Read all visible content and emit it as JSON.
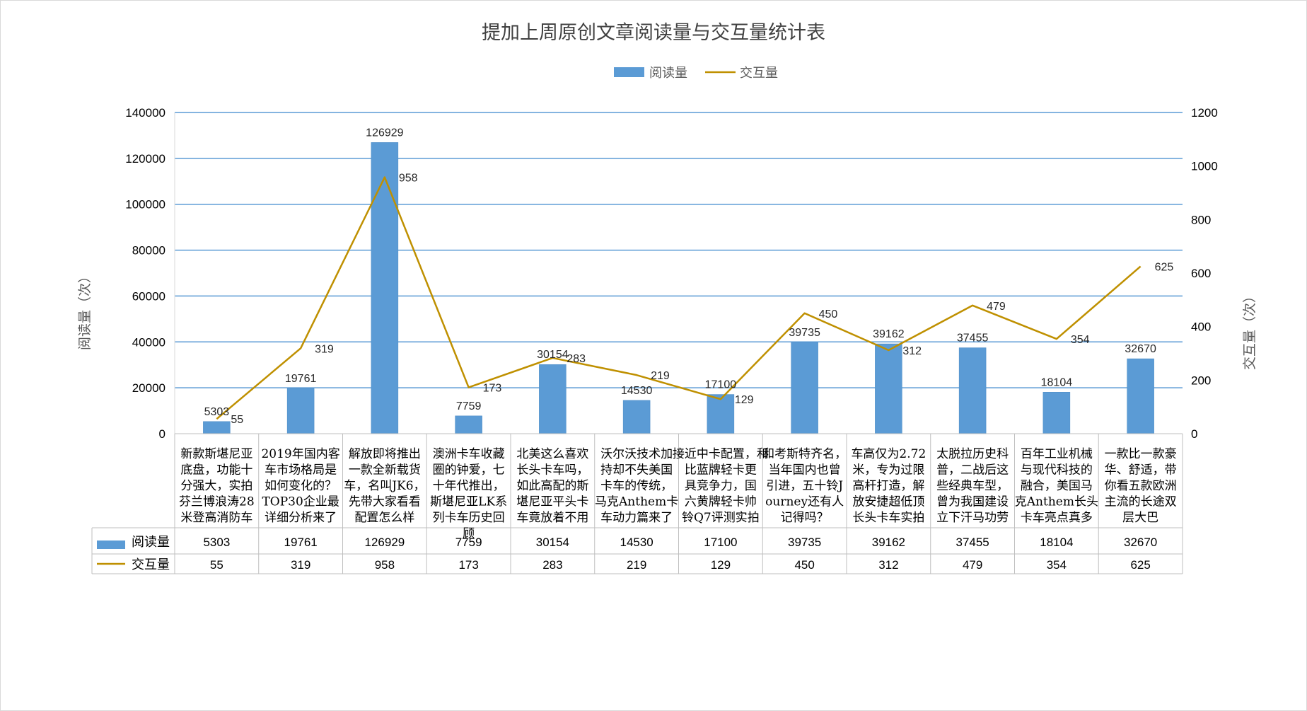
{
  "chart_data": {
    "type": "bar+line",
    "title": "提加上周原创文章阅读量与交互量统计表",
    "categories": [
      "新款斯堪尼亚底盘，功能十分强大，实拍芬兰博浪涛28米登高消防车",
      "2019年国内客车市场格局是如何变化的？TOP30企业最详细分析来了",
      "解放即将推出一款全新载货车，名叫JK6，先带大家看看配置怎么样",
      "澳洲卡车收藏圈的钟爱，七十年代推出，斯堪尼亚LK系列卡车历史回顾",
      "北美这么喜欢长头卡车吗，如此高配的斯堪尼亚平头卡车竟放着不用",
      "沃尔沃技术加持却不失美国卡车的传统，马克Anthem卡车动力篇来了",
      "接近中卡配置，和比蓝牌轻卡更具竞争力，国六黄牌轻卡帅铃Q7评测实拍",
      "和考斯特齐名，当年国内也曾引进，五十铃Journey还有人记得吗？",
      "车高仅为2.72米，专为过限高杆打造，解放安捷超低顶长头卡车实拍",
      "太脱拉历史科普，二战后这些经典车型，曾为我国建设立下汗马功劳",
      "百年工业机械与现代科技的融合，美国马克Anthem长头卡车亮点真多",
      "一款比一款豪华、舒适，带你看五款欧洲主流的长途双层大巴"
    ],
    "category_lines": [
      [
        "新款斯堪尼亚",
        "底盘，功能十",
        "分强大，实拍",
        "芬兰博浪涛28",
        "米登高消防车"
      ],
      [
        "2019年国内客",
        "车市场格局是",
        "如何变化的？",
        "TOP30企业最",
        "详细分析来了"
      ],
      [
        "解放即将推出",
        "一款全新载货",
        "车，名叫JK6，",
        "先带大家看看",
        "配置怎么样"
      ],
      [
        "澳洲卡车收藏",
        "圈的钟爱，七",
        "十年代推出，",
        "斯堪尼亚LK系",
        "列卡车历史回",
        "顾"
      ],
      [
        "北美这么喜欢",
        "长头卡车吗，",
        "如此高配的斯",
        "堪尼亚平头卡",
        "车竟放着不用"
      ],
      [
        "沃尔沃技术加",
        "持却不失美国",
        "卡车的传统，",
        "马克Anthem卡",
        "车动力篇来了"
      ],
      [
        "接近中卡配置，和",
        "比蓝牌轻卡更",
        "具竞争力，国",
        "六黄牌轻卡帅",
        "铃Q7评测实拍"
      ],
      [
        "和考斯特齐名，",
        "当年国内也曾",
        "引进，五十铃J",
        "ourney还有人",
        "记得吗？"
      ],
      [
        "车高仅为2.72",
        "米，专为过限",
        "高杆打造，解",
        "放安捷超低顶",
        "长头卡车实拍"
      ],
      [
        "太脱拉历史科",
        "普，二战后这",
        "些经典车型，",
        "曾为我国建设",
        "立下汗马功劳"
      ],
      [
        "百年工业机械",
        "与现代科技的",
        "融合，美国马",
        "克Anthem长头",
        "卡车亮点真多"
      ],
      [
        "一款比一款豪",
        "华、舒适，带",
        "你看五款欧洲",
        "主流的长途双",
        "层大巴"
      ]
    ],
    "series": [
      {
        "name": "阅读量",
        "type": "bar",
        "axis": "left",
        "color": "#5b9bd5",
        "values": [
          5303,
          19761,
          126929,
          7759,
          30154,
          14530,
          17100,
          39735,
          39162,
          37455,
          18104,
          32670
        ]
      },
      {
        "name": "交互量",
        "type": "line",
        "axis": "right",
        "color": "#bf9000",
        "values": [
          55,
          319,
          958,
          173,
          283,
          219,
          129,
          450,
          312,
          479,
          354,
          625
        ]
      }
    ],
    "ylabel": "阅读量（次）",
    "y2label": "交互量（次）",
    "ylim": [
      0,
      140000
    ],
    "y2lim": [
      0,
      1200
    ],
    "yticks": [
      "0",
      "20000",
      "40000",
      "60000",
      "80000",
      "100000",
      "120000",
      "140000"
    ],
    "y2ticks": [
      "0",
      "200",
      "400",
      "600",
      "800",
      "1000",
      "1200"
    ],
    "grid": true,
    "legend": "top-center",
    "data_table": true
  }
}
